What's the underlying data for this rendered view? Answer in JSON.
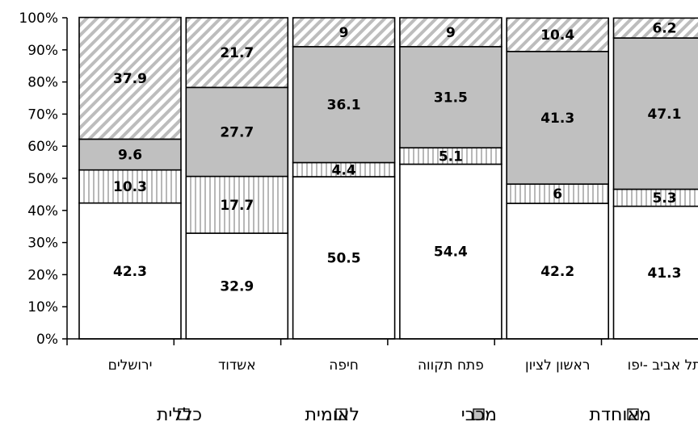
{
  "chart_data": {
    "type": "bar",
    "stacked": true,
    "percent_axis": true,
    "categories": [
      "ירושלים",
      "אשדוד",
      "חיפה",
      "פתח תקווה",
      "ראשון לציון",
      "תל אביב -יפו"
    ],
    "series": [
      {
        "name": "כללית",
        "values": [
          42.3,
          32.9,
          50.5,
          54.4,
          42.2,
          41.3
        ],
        "pattern": "white"
      },
      {
        "name": "לאומית",
        "values": [
          10.3,
          17.7,
          4.4,
          5.1,
          6,
          5.3
        ],
        "pattern": "vertical-stripes"
      },
      {
        "name": "מכבי",
        "values": [
          9.6,
          27.7,
          36.1,
          31.5,
          41.3,
          47.1
        ],
        "pattern": "gray"
      },
      {
        "name": "מאוחדת",
        "values": [
          37.9,
          21.7,
          9,
          9,
          10.4,
          6.2
        ],
        "pattern": "diagonal-stripes"
      }
    ],
    "legend_order": [
      "כללית",
      "לאומית",
      "מכבי",
      "מאוחדת"
    ],
    "yticks": [
      "0%",
      "10%",
      "20%",
      "30%",
      "40%",
      "50%",
      "60%",
      "70%",
      "80%",
      "90%",
      "100%"
    ],
    "ylim": [
      0,
      100
    ],
    "legend_position": "bottom",
    "grid": false
  }
}
